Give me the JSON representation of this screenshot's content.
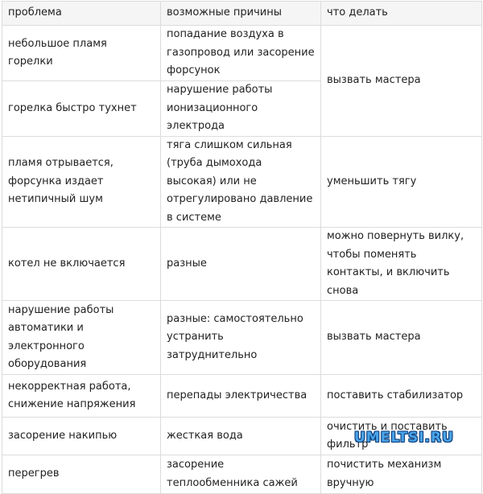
{
  "header": [
    "проблема",
    "возможные причины",
    "что делать"
  ],
  "rows": [
    [
      "небольшое пламя горелки",
      "попадание воздуха в газопровод или засорение форсунок",
      "вызвать мастера"
    ],
    [
      "горелка быстро тухнет",
      "нарушение работы ионизационного электрода"
    ],
    [
      "пламя отрывается, форсунка издает нетипичный шум",
      "тяга слишком сильная (труба дымохода высокая) или не отрегулировано давление в системе",
      "уменьшить тягу"
    ],
    [
      "котел не включается",
      "разные",
      "можно повернуть вилку, чтобы поменять контакты, и включить снова"
    ],
    [
      "нарушение работы автоматики и электронного оборудования",
      "разные: самостоятельно устранить затруднительно",
      "вызвать мастера"
    ],
    [
      "некорректная работа, снижение напряжения",
      "перепады электричества",
      "поставить стабилизатор"
    ],
    [
      "засорение накипью",
      "жесткая вода",
      "очистить и поставить фильтр"
    ],
    [
      "перегрев",
      "засорение теплообменника сажей",
      "почистить механизм вручную"
    ]
  ],
  "watermark": "UMELTSI.RU"
}
